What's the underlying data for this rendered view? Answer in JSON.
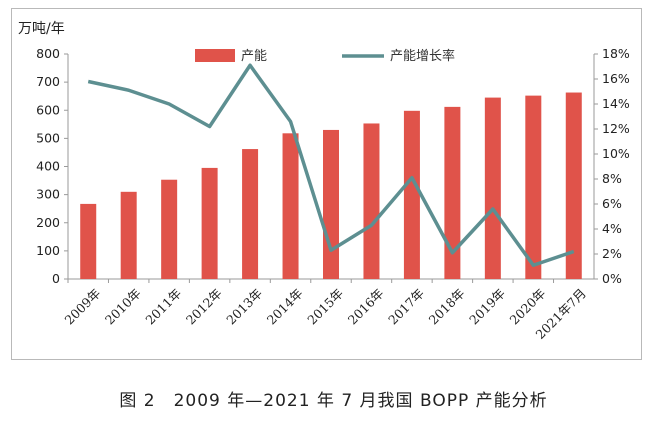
{
  "chart_data": {
    "type": "bar+line",
    "unit_label": "万吨/年",
    "categories": [
      "2009年",
      "2010年",
      "2011年",
      "2012年",
      "2013年",
      "2014年",
      "2015年",
      "2016年",
      "2017年",
      "2018年",
      "2019年",
      "2020年",
      "2021年7月"
    ],
    "series": [
      {
        "name": "产能",
        "type": "bar",
        "axis": "left",
        "color": "#e0534a",
        "values": [
          267,
          310,
          353,
          395,
          462,
          518,
          530,
          553,
          598,
          612,
          645,
          652,
          663
        ]
      },
      {
        "name": "产能增长率",
        "type": "line",
        "axis": "right",
        "color": "#5d8f91",
        "values": [
          15.8,
          15.1,
          14.0,
          12.2,
          17.1,
          12.6,
          2.3,
          4.3,
          8.1,
          2.1,
          5.6,
          1.1,
          2.2
        ]
      }
    ],
    "left_axis": {
      "min": 0,
      "max": 800,
      "step": 100,
      "ticks": [
        "0",
        "100",
        "200",
        "300",
        "400",
        "500",
        "600",
        "700",
        "800"
      ]
    },
    "right_axis": {
      "min": 0,
      "max": 18,
      "step": 2,
      "ticks": [
        "0%",
        "2%",
        "4%",
        "6%",
        "8%",
        "10%",
        "12%",
        "14%",
        "16%",
        "18%"
      ]
    },
    "grid": false,
    "legend_position": "top-center"
  },
  "caption": "图 2　2009 年—2021 年 7 月我国 BOPP 产能分析"
}
